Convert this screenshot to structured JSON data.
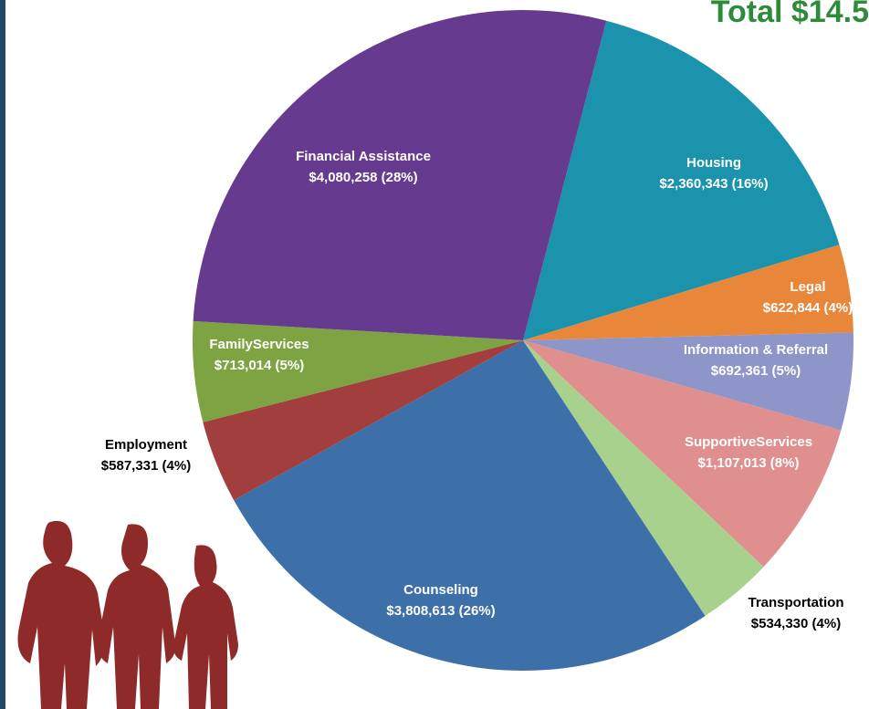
{
  "chart_data": {
    "type": "pie",
    "title": "Total $14.5",
    "categories": [
      "Housing",
      "Legal",
      "Information & Referral",
      "SupportiveServices",
      "Transportation",
      "Counseling",
      "Employment",
      "FamilyServices",
      "Financial Assistance"
    ],
    "values": [
      2360343,
      622844,
      692361,
      1107013,
      534330,
      3808613,
      587331,
      713014,
      4080258
    ],
    "value_labels": [
      "$2,360,343 (16%)",
      "$622,844 (4%)",
      "$692,361 (5%)",
      "$1,107,013 (8%)",
      "$534,330 (4%)",
      "$3,808,613 (26%)",
      "$587,331 (4%)",
      "$713,014 (5%)",
      "$4,080,258 (28%)"
    ],
    "colors": [
      "#1b93ad",
      "#e8873a",
      "#8e95c8",
      "#e08f8f",
      "#a9d18e",
      "#3d6fa8",
      "#a23f3e",
      "#7ea342",
      "#663a8f"
    ]
  }
}
